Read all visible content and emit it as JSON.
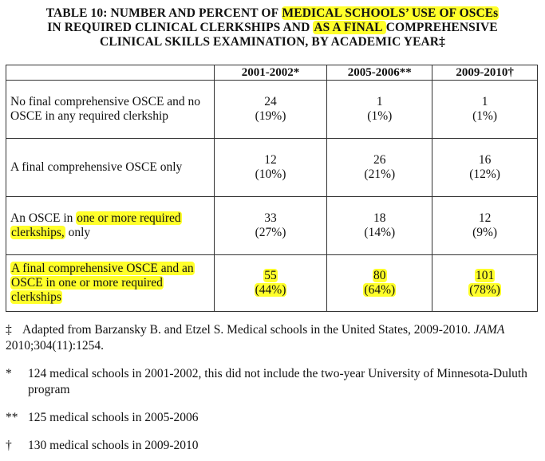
{
  "title": {
    "line1_pre": "TABLE 10:  NUMBER AND PERCENT OF ",
    "line1_hl": "MEDICAL SCHOOLS’ USE OF OSCEs",
    "line2_pre": "IN REQUIRED CLINICAL CLERKSHIPS AND ",
    "line2_hl": "AS A FINAL ",
    "line2_post": "COMPREHENSIVE",
    "line3": "CLINICAL SKILLS EXAMINATION, BY ACADEMIC YEAR‡"
  },
  "table": {
    "headers": [
      "",
      "2001-2002*",
      "2005-2006**",
      "2009-2010†"
    ],
    "rows": [
      {
        "label_lines": [
          "No final comprehensive OSCE and no",
          "OSCE in any required clerkship"
        ],
        "cells": [
          [
            "24",
            "(19%)"
          ],
          [
            "1",
            "(1%)"
          ],
          [
            "1",
            "(1%)"
          ]
        ]
      },
      {
        "label_lines": [
          "A final comprehensive OSCE only"
        ],
        "cells": [
          [
            "12",
            "(10%)"
          ],
          [
            "26",
            "(21%)"
          ],
          [
            "16",
            "(12%)"
          ]
        ]
      },
      {
        "label_pre": "An OSCE in ",
        "label_hl1": "one or more required",
        "label_hl2": "clerkships,",
        "label_post": " only",
        "cells": [
          [
            "33",
            "(27%)"
          ],
          [
            "18",
            "(14%)"
          ],
          [
            "12",
            "(9%)"
          ]
        ]
      },
      {
        "label_lines": [
          "A final comprehensive OSCE and an",
          "OSCE in one or more required",
          "clerkships"
        ],
        "cells": [
          [
            "55",
            "(44%)"
          ],
          [
            "80",
            "(64%)"
          ],
          [
            "101",
            "(78%)"
          ]
        ]
      }
    ]
  },
  "footnotes": [
    {
      "symbol": "‡",
      "text_pre": "Adapted from Barzansky B. and Etzel S. Medical schools in the United States, 2009-2010. ",
      "text_em": "JAMA",
      "text_line2": "2010;304(11):1254."
    },
    {
      "symbol": "*",
      "text_line1": "124 medical schools in 2001-2002, this did not include the two-year University of Minnesota-Duluth",
      "text_line2": "program"
    },
    {
      "symbol": "**",
      "text_line1": "125 medical schools in 2005-2006"
    },
    {
      "symbol": "†",
      "text_line1": "130 medical schools in 2009-2010"
    }
  ],
  "colors": {
    "highlight": "#ffff2a",
    "border": "#333333",
    "text": "#111111"
  }
}
